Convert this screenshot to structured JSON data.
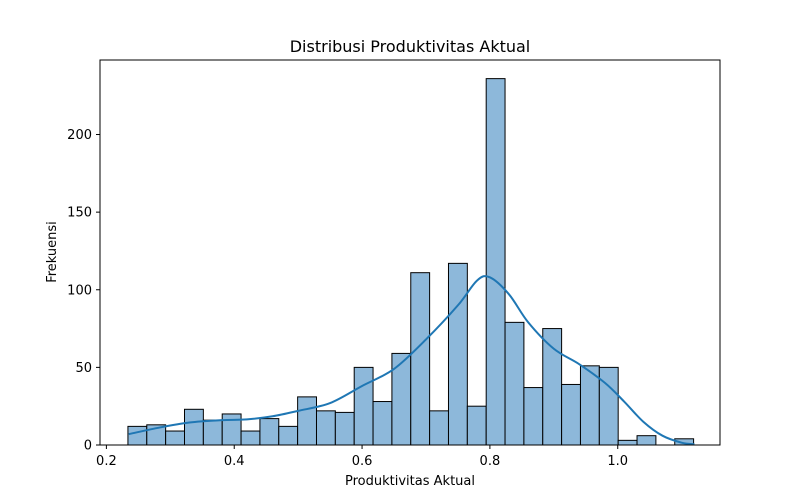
{
  "chart_data": {
    "type": "bar",
    "title": "Distribusi Produktivitas Aktual",
    "xlabel": "Produktivitas Aktual",
    "ylabel": "Frekuensi",
    "xlim": [
      0.19,
      1.16
    ],
    "ylim": [
      0,
      248
    ],
    "xticks": [
      0.2,
      0.4,
      0.6,
      0.8,
      1.0
    ],
    "xtick_labels": [
      "0.2",
      "0.4",
      "0.6",
      "0.8",
      "1.0"
    ],
    "yticks": [
      0,
      50,
      100,
      150,
      200
    ],
    "ytick_labels": [
      "0",
      "50",
      "100",
      "150",
      "200"
    ],
    "bin_start": 0.2337,
    "bin_width": 0.0295,
    "bar_color": "#8db8da",
    "bar_edge_color": "#000000",
    "kde_color": "#1f77b4",
    "grid": false,
    "values": [
      12,
      13,
      9,
      23,
      16,
      20,
      9,
      17,
      12,
      31,
      22,
      21,
      50,
      28,
      59,
      111,
      22,
      117,
      25,
      236,
      79,
      37,
      75,
      39,
      51,
      50,
      3,
      6,
      0,
      4
    ],
    "kde": {
      "x": [
        0.235,
        0.28,
        0.33,
        0.38,
        0.42,
        0.46,
        0.5,
        0.55,
        0.6,
        0.65,
        0.7,
        0.75,
        0.78,
        0.8,
        0.83,
        0.86,
        0.9,
        0.94,
        0.98,
        1.01,
        1.04,
        1.07,
        1.1,
        1.12
      ],
      "y": [
        7,
        11,
        14.5,
        16,
        16.5,
        18.5,
        22,
        27,
        38,
        49,
        68,
        90,
        106,
        108,
        97,
        79,
        62,
        52,
        40,
        28,
        15,
        6,
        1.5,
        0.5
      ]
    }
  }
}
